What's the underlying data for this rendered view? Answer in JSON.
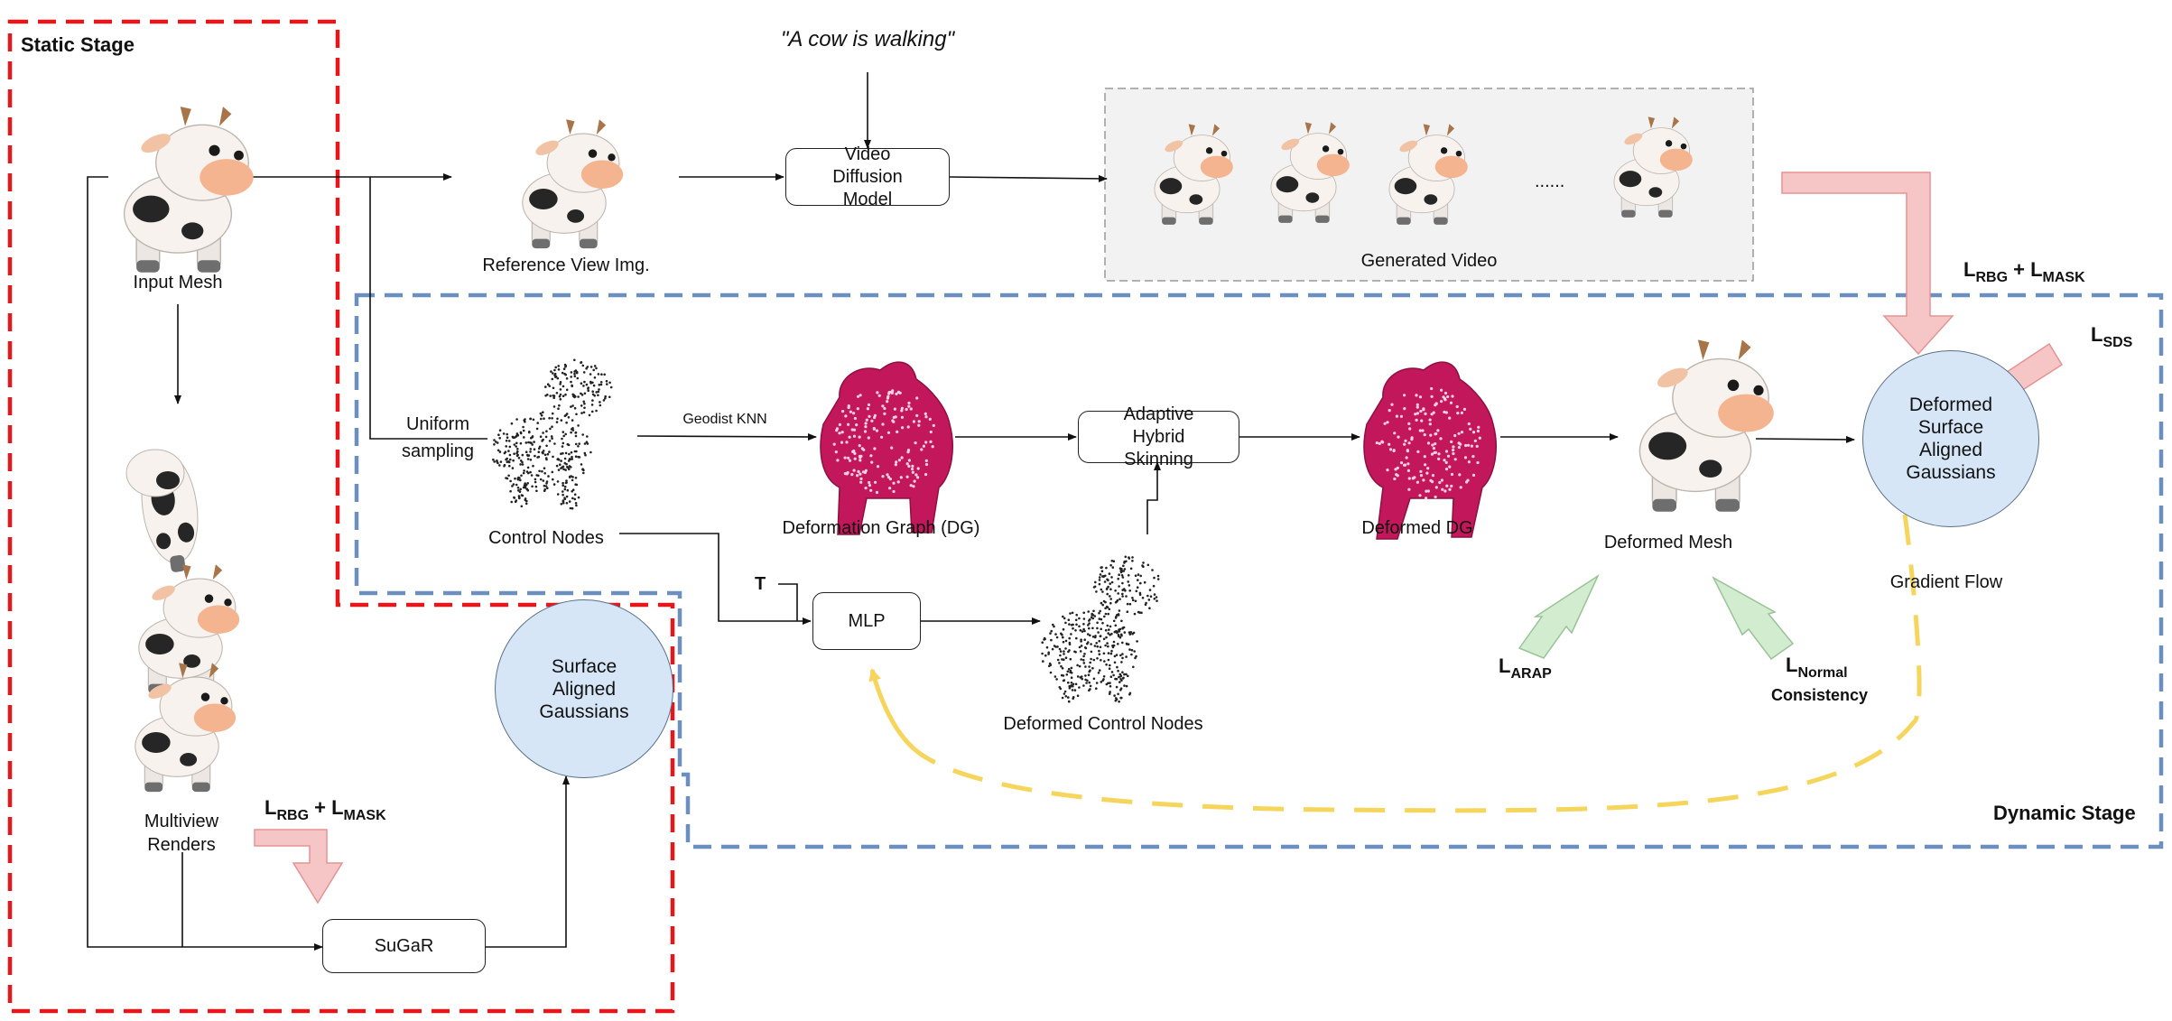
{
  "stages": {
    "static": "Static Stage",
    "dynamic": "Dynamic Stage"
  },
  "prompt": "\"A cow is walking\"",
  "nodes": {
    "input_mesh": "Input Mesh",
    "reference_view": "Reference View Img.",
    "video_diffusion": "Video Diffusion Model",
    "generated_video": "Generated Video",
    "video_ellipsis": "......",
    "uniform_sampling": "Uniform sampling",
    "control_nodes": "Control Nodes",
    "geodist_knn": "Geodist KNN",
    "deformation_graph": "Deformation Graph (DG)",
    "adaptive_skinning": "Adaptive Hybrid Skinning",
    "deformed_dg": "Deformed DG",
    "deformed_mesh": "Deformed Mesh",
    "deformed_gaussians": "Deformed Surface Aligned Gaussians",
    "gradient_flow": "Gradient Flow",
    "t_input": "T",
    "mlp": "MLP",
    "deformed_control_nodes": "Deformed Control Nodes",
    "multiview_renders": "Multiview Renders",
    "surface_gaussians": "Surface Aligned Gaussians",
    "sugar": "SuGaR"
  },
  "losses": {
    "rgb_mask_static": {
      "a": "L",
      "a_sub": "RBG",
      "plus": " + ",
      "b": "L",
      "b_sub": "MASK"
    },
    "rgb_mask_dynamic": {
      "a": "L",
      "a_sub": "RBG",
      "plus": " + ",
      "b": "L",
      "b_sub": "MASK"
    },
    "sds": {
      "a": "L",
      "a_sub": "SDS"
    },
    "arap": {
      "a": "L",
      "a_sub": "ARAP"
    },
    "normal": {
      "a": "L",
      "a_sub": "Normal",
      "line2": "Consistency"
    }
  },
  "colors": {
    "static_border": "#e5171b",
    "dynamic_border": "#6b8fbf",
    "circle_fill": "#d6e6f7",
    "loss_arrow_red": "#f6c6c6",
    "loss_arrow_green": "#d2ecd0",
    "gradient_flow": "#f6d55c",
    "video_panel": "#f2f2f2",
    "cow_body": "#f7f2ee",
    "cow_spot": "#262626",
    "cow_snout": "#f4b48f",
    "dg_magenta": "#c2185b"
  }
}
